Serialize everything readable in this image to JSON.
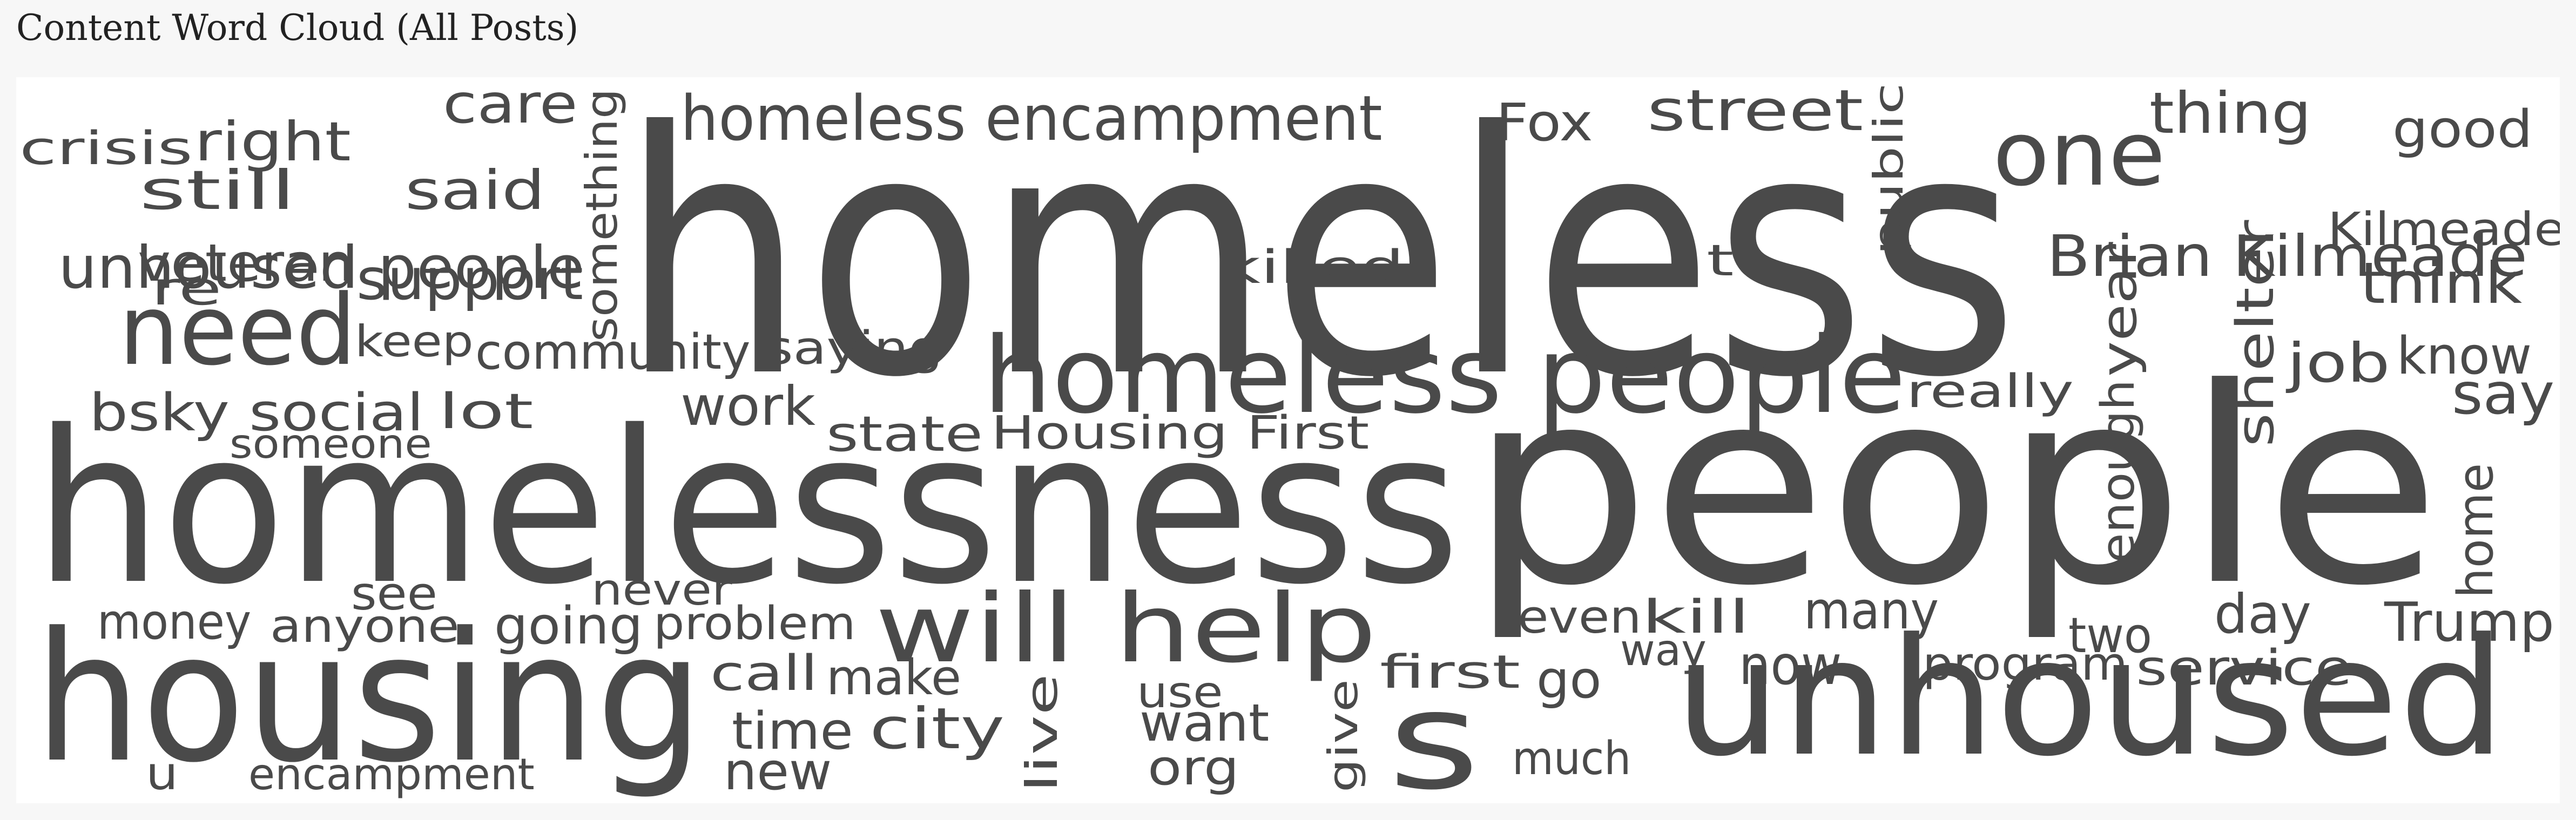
{
  "title": "Content Word Cloud (All Posts)",
  "colors": {
    "word": "#4a4a4a",
    "background": "#ffffff",
    "page": "#f7f7f7",
    "title": "#222222"
  },
  "words": {
    "homeless": "homeless",
    "homelessness": "homelessness",
    "people": "people",
    "housing": "housing",
    "unhoused": "unhoused",
    "homeless_people": "homeless people",
    "will_help": "will help",
    "need": "need",
    "one": "one",
    "homeless_encampment": "homeless encampment",
    "s": "s",
    "brian_kilmeade": "Brian Kilmeade",
    "unhoused_people": "unhoused people",
    "crisis": "crisis",
    "right": "right",
    "care": "care",
    "still": "still",
    "said": "said",
    "veteran": "veteran",
    "re": "re",
    "support": "support",
    "keep": "keep",
    "community": "community",
    "saying": "saying",
    "bsky_social": "bsky social",
    "lot": "lot",
    "work": "work",
    "someone": "someone",
    "state": "state",
    "housing_first": "Housing First",
    "something": "something",
    "fox": "Fox",
    "street": "street",
    "public": "public",
    "thing": "thing",
    "good": "good",
    "kilmeade": "Kilmeade",
    "killed": "killed",
    "t": "t",
    "year": "year",
    "shelter": "shelter",
    "think": "think",
    "job": "job",
    "know": "know",
    "say": "say",
    "really": "really",
    "enough": "enough",
    "see": "see",
    "never": "never",
    "money": "money",
    "anyone": "anyone",
    "going": "going",
    "problem": "problem",
    "call": "call",
    "make": "make",
    "time": "time",
    "city": "city",
    "new": "new",
    "u": "u",
    "encampment": "encampment",
    "live": "live",
    "use": "use",
    "want": "want",
    "org": "org",
    "give": "give",
    "first": "first",
    "go": "go",
    "much": "much",
    "even": "even",
    "kill": "kill",
    "way": "way",
    "many": "many",
    "now": "now",
    "two": "two",
    "program": "program",
    "service": "service",
    "day": "day",
    "trump": "Trump",
    "home": "home"
  }
}
